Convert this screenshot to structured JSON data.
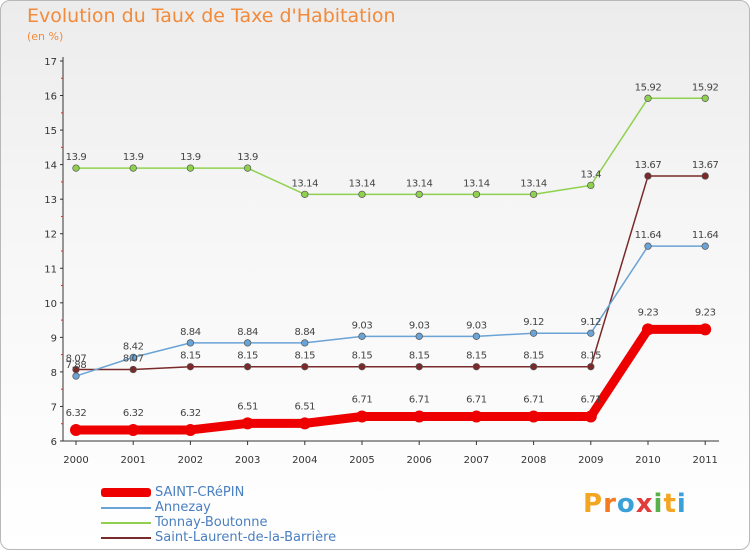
{
  "title": "Evolution du Taux de Taxe d'Habitation",
  "subtitle": "(en %)",
  "logo": {
    "letters": [
      "P",
      "r",
      "o",
      "x",
      "i",
      "t",
      "i"
    ],
    "colors": [
      "#f4a623",
      "#f47a1f",
      "#3aa0d8",
      "#e23b3b",
      "#5ab04a",
      "#f4a623",
      "#3aa0d8"
    ]
  },
  "chart_data": {
    "type": "line",
    "title": "Evolution du Taux de Taxe d'Habitation",
    "subtitle": "(en %)",
    "x": [
      "2000",
      "2001",
      "2002",
      "2003",
      "2004",
      "2005",
      "2006",
      "2007",
      "2008",
      "2009",
      "2010",
      "2011"
    ],
    "ylim": [
      6,
      17
    ],
    "yticks": [
      "6",
      "7",
      "8",
      "9",
      "10",
      "11",
      "12",
      "13",
      "14",
      "15",
      "16",
      "17"
    ],
    "grid": false,
    "legend": "bottom-left",
    "series": [
      {
        "name": "SAINT-CRéPIN",
        "color": "#ee0000",
        "values": [
          6.32,
          6.32,
          6.32,
          6.51,
          6.51,
          6.71,
          6.71,
          6.71,
          6.71,
          6.71,
          9.23,
          9.23
        ],
        "labels": [
          "6.32",
          "6.32",
          "6.32",
          "6.51",
          "6.51",
          "6.71",
          "6.71",
          "6.71",
          "6.71",
          "6.71",
          "9.23",
          "9.23"
        ]
      },
      {
        "name": "Annezay",
        "color": "#6aa3d5",
        "values": [
          7.88,
          8.42,
          8.84,
          8.84,
          8.84,
          9.03,
          9.03,
          9.03,
          9.12,
          9.12,
          11.64,
          11.64
        ],
        "labels": [
          "7.88",
          "8.42",
          "8.84",
          "8.84",
          "8.84",
          "9.03",
          "9.03",
          "9.03",
          "9.12",
          "9.12",
          "11.64",
          "11.64"
        ]
      },
      {
        "name": "Tonnay-Boutonne",
        "color": "#8fd14f",
        "values": [
          13.9,
          13.9,
          13.9,
          13.9,
          13.14,
          13.14,
          13.14,
          13.14,
          13.14,
          13.4,
          15.92,
          15.92
        ],
        "labels": [
          "13.9",
          "13.9",
          "13.9",
          "13.9",
          "13.14",
          "13.14",
          "13.14",
          "13.14",
          "13.14",
          "13.4",
          "15.92",
          "15.92"
        ]
      },
      {
        "name": "Saint-Laurent-de-la-Barrière",
        "color": "#7a2a2a",
        "values": [
          8.07,
          8.07,
          8.15,
          8.15,
          8.15,
          8.15,
          8.15,
          8.15,
          8.15,
          8.15,
          13.67,
          13.67
        ],
        "labels": [
          "8.07",
          "8.07",
          "8.15",
          "8.15",
          "8.15",
          "8.15",
          "8.15",
          "8.15",
          "8.15",
          "8.15",
          "13.67",
          "13.67"
        ]
      }
    ]
  }
}
